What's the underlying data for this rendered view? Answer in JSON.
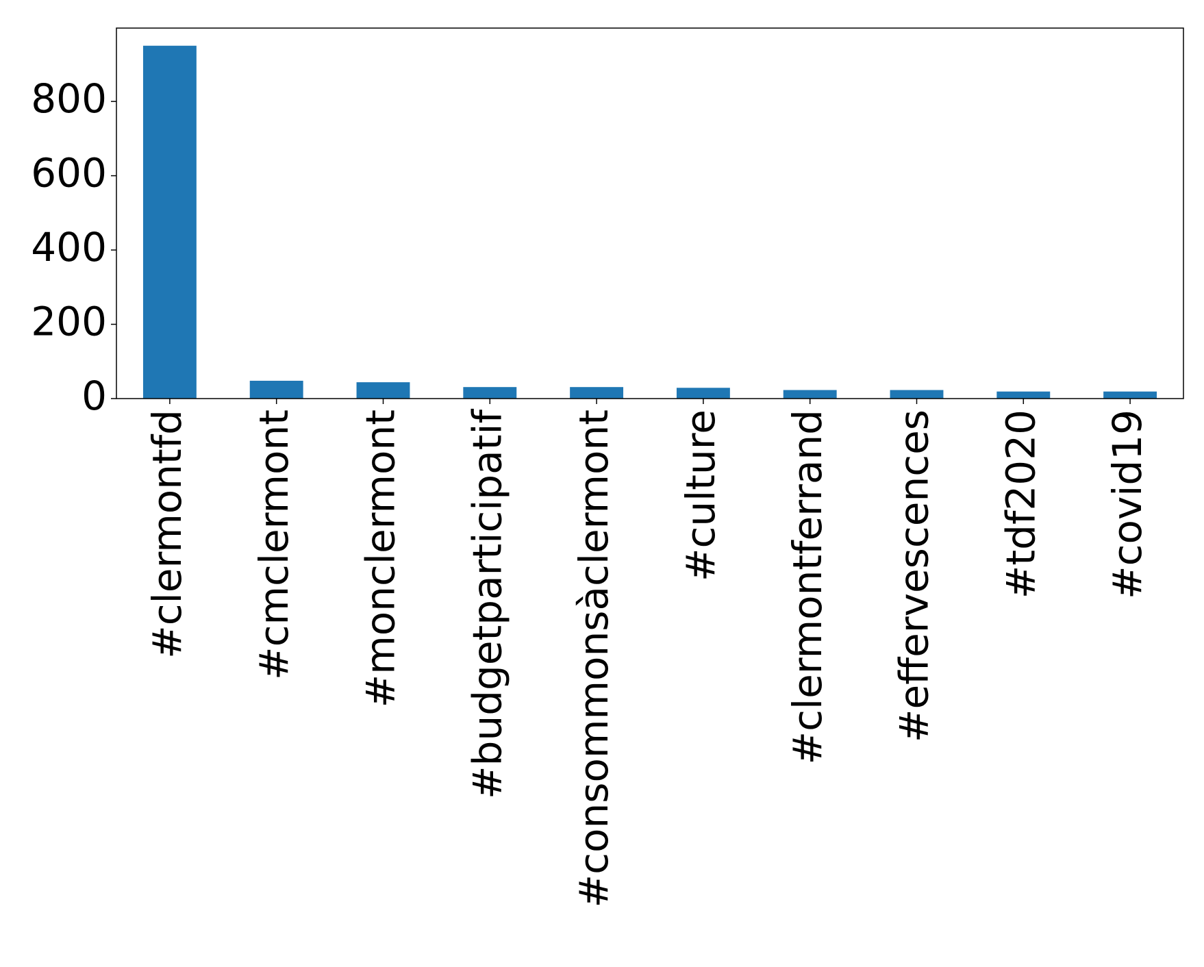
{
  "chart_data": {
    "type": "bar",
    "categories": [
      "#clermontfd",
      "#cmclermont",
      "#monclermont",
      "#budgetparticipatif",
      "#consommonsàclermont",
      "#culture",
      "#clermontferrand",
      "#effervescences",
      "#tdf2020",
      "#covid19"
    ],
    "values": [
      950,
      48,
      44,
      31,
      31,
      29,
      23,
      23,
      19,
      19
    ],
    "color": "#1f77b4",
    "ylim": [
      0,
      997.5
    ],
    "yticks": [
      0,
      200,
      400,
      600,
      800
    ],
    "grid": false
  }
}
